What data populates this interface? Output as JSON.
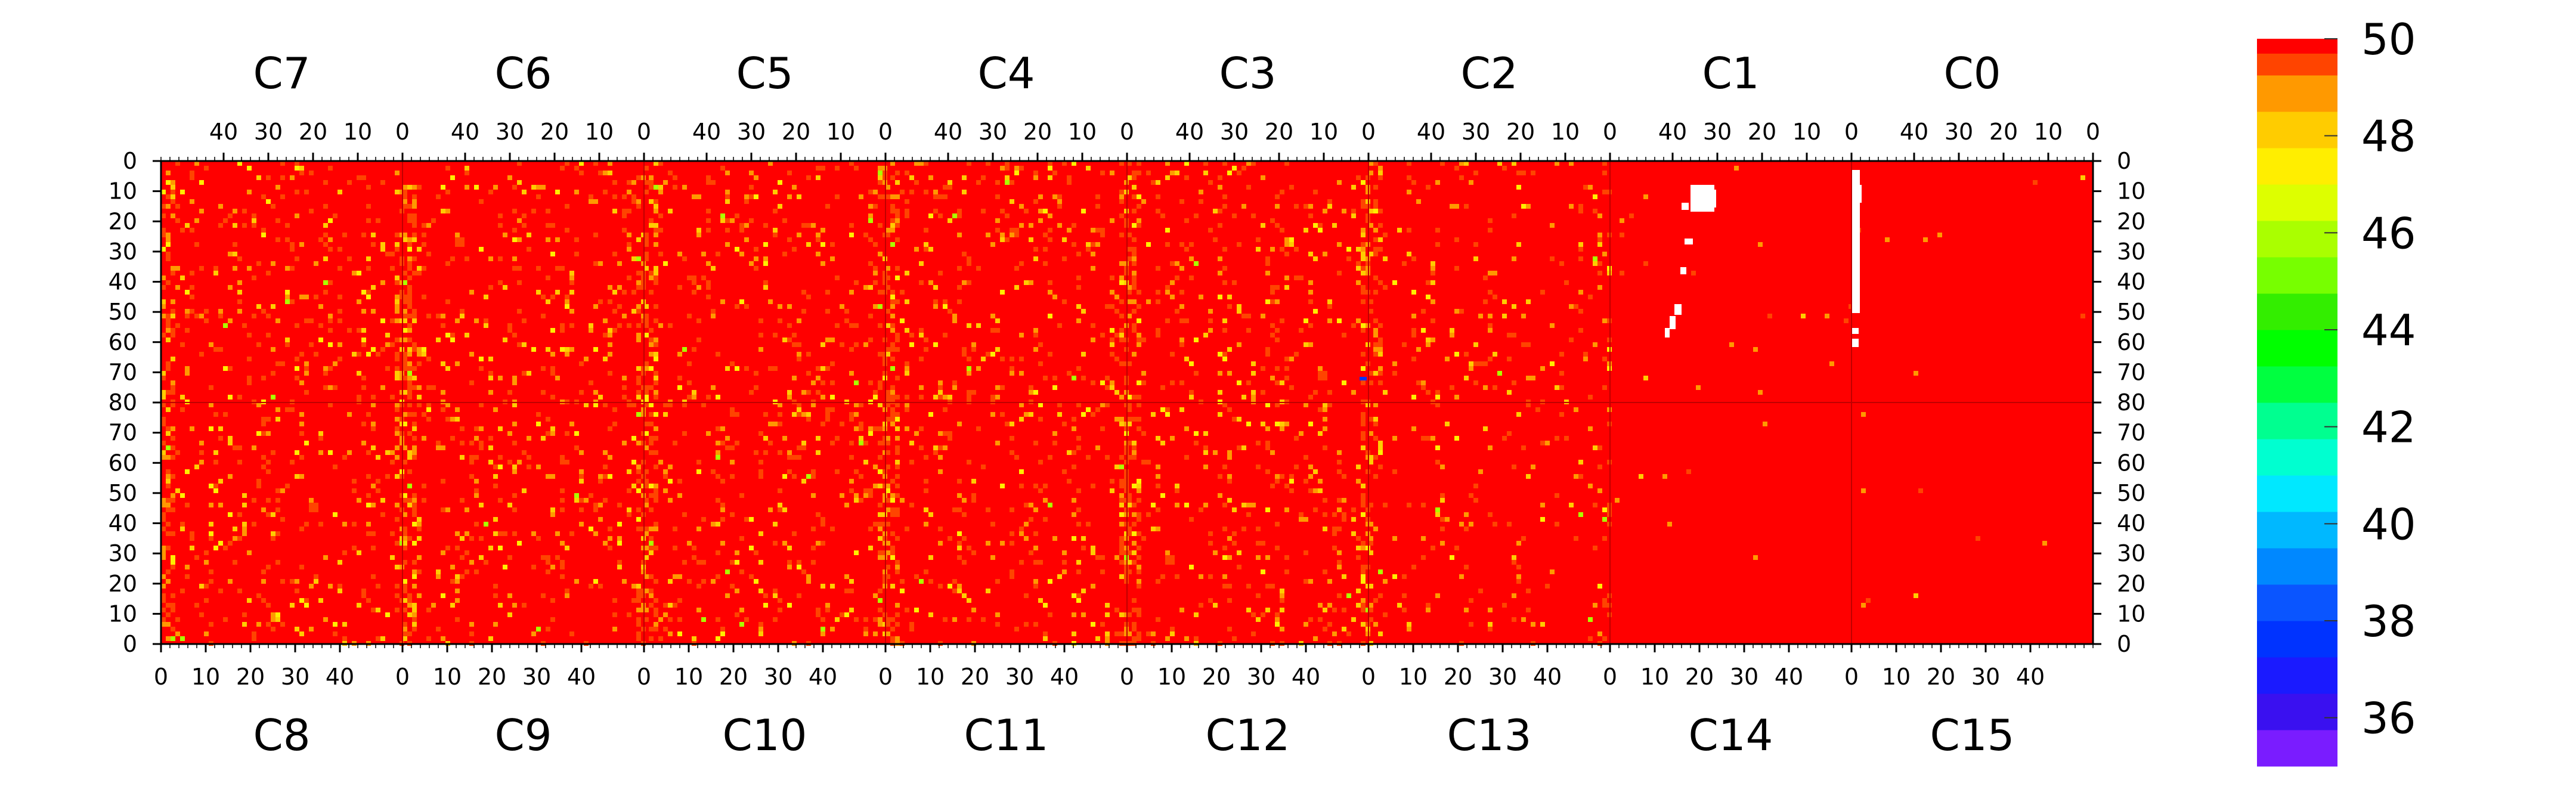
{
  "chart_data": {
    "type": "heatmap",
    "description_note": "",
    "z_range": [
      35,
      50
    ],
    "colorbar": {
      "labels": [
        "50",
        "48",
        "46",
        "44",
        "42",
        "40",
        "38",
        "36"
      ],
      "values": [
        50,
        48,
        46,
        44,
        42,
        40,
        38,
        36
      ],
      "levels": [
        {
          "min": 35.0,
          "color": "#7a1cff"
        },
        {
          "min": 35.75,
          "color": "#3a10f0"
        },
        {
          "min": 36.5,
          "color": "#1a1aff"
        },
        {
          "min": 37.25,
          "color": "#0033ff"
        },
        {
          "min": 38.0,
          "color": "#0a55ff"
        },
        {
          "min": 38.75,
          "color": "#0088ff"
        },
        {
          "min": 39.5,
          "color": "#00b8ff"
        },
        {
          "min": 40.25,
          "color": "#00e8ff"
        },
        {
          "min": 41.0,
          "color": "#00ffd0"
        },
        {
          "min": 41.75,
          "color": "#00ff90"
        },
        {
          "min": 42.5,
          "color": "#00ff40"
        },
        {
          "min": 43.25,
          "color": "#00ff00"
        },
        {
          "min": 44.0,
          "color": "#33ee00"
        },
        {
          "min": 44.75,
          "color": "#77ff00"
        },
        {
          "min": 45.5,
          "color": "#aaff00"
        },
        {
          "min": 46.25,
          "color": "#ddff00"
        },
        {
          "min": 47.0,
          "color": "#ffee00"
        },
        {
          "min": 47.75,
          "color": "#ffcc00"
        },
        {
          "min": 48.5,
          "color": "#ff9900"
        },
        {
          "min": 49.25,
          "color": "#ff4400"
        },
        {
          "min": 49.7,
          "color": "#ff0000"
        }
      ]
    },
    "top_chips": [
      "C7",
      "C6",
      "C5",
      "C4",
      "C3",
      "C2",
      "C1",
      "C0"
    ],
    "bottom_chips": [
      "C8",
      "C9",
      "C10",
      "C11",
      "C12",
      "C13",
      "C14",
      "C15"
    ],
    "top_x_ticks": [
      "40",
      "30",
      "20",
      "10",
      "0"
    ],
    "bottom_x_ticks": [
      "0",
      "10",
      "20",
      "30",
      "40"
    ],
    "y_ticks_top_half": [
      "0",
      "10",
      "20",
      "30",
      "40",
      "50",
      "60",
      "70",
      "80"
    ],
    "y_ticks_bottom_half": [
      "70",
      "60",
      "50",
      "40",
      "30",
      "20",
      "10",
      "0"
    ],
    "columns_per_chip": 54,
    "rows_per_chip": 80,
    "dominant_value": 50,
    "regions": [
      {
        "note": "most pixels at maximum (50) with scattered lower values 46-49 across chips C2-C7 and C8-C12"
      },
      {
        "note": "chips C0, C1, C13, C14, C15 nearly uniform at 50 with a few white (no data) clusters in C1 and near C1/C0 boundary"
      }
    ]
  }
}
